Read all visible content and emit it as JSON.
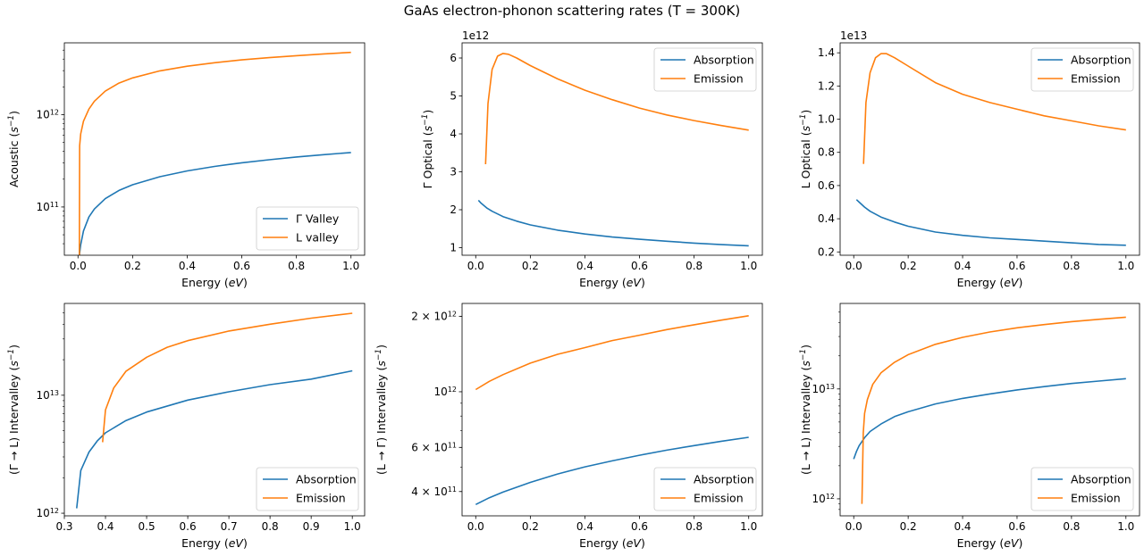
{
  "figure": {
    "title": "GaAs electron-phonon scattering rates (T = 300K)"
  },
  "colors": {
    "blue": "#1f77b4",
    "orange": "#ff7f0e"
  },
  "chart_data": [
    {
      "type": "line",
      "id": "acoustic",
      "xlabel": "Energy (eV)",
      "ylabel": "Acoustic (s^-1)",
      "yscale": "log",
      "xlim": [
        -0.05,
        1.05
      ],
      "ylim": [
        30000000000.0,
        6000000000000.0
      ],
      "xticks": [
        0,
        0.2,
        0.4,
        0.6,
        0.8,
        1.0
      ],
      "xtick_labels": [
        "0.0",
        "0.2",
        "0.4",
        "0.6",
        "0.8",
        "1.0"
      ],
      "yticks": [
        100000000000.0,
        1000000000000.0
      ],
      "ytick_labels": [
        [
          "10",
          "11"
        ],
        [
          "10",
          "12"
        ]
      ],
      "legend": "lower-right",
      "series": [
        {
          "name": "Γ Valley",
          "color": "#1f77b4",
          "x": [
            0.005,
            0.01,
            0.02,
            0.04,
            0.06,
            0.1,
            0.15,
            0.2,
            0.3,
            0.4,
            0.5,
            0.6,
            0.7,
            0.8,
            0.9,
            1.0
          ],
          "y": [
            30000000000.0,
            39000000000.0,
            55000000000.0,
            78000000000.0,
            95000000000.0,
            123000000000.0,
            151000000000.0,
            174000000000.0,
            213000000000.0,
            246000000000.0,
            275000000000.0,
            301000000000.0,
            325000000000.0,
            348000000000.0,
            369000000000.0,
            389000000000.0
          ]
        },
        {
          "name": "L valley",
          "color": "#ff7f0e",
          "x": [
            0.005,
            0.006,
            0.01,
            0.02,
            0.04,
            0.06,
            0.1,
            0.15,
            0.2,
            0.3,
            0.4,
            0.5,
            0.6,
            0.7,
            0.8,
            0.9,
            1.0
          ],
          "y": [
            30000000000.0,
            460000000000.0,
            620000000000.0,
            850000000000.0,
            1150000000000.0,
            1400000000000.0,
            1800000000000.0,
            2200000000000.0,
            2500000000000.0,
            2980000000000.0,
            3350000000000.0,
            3650000000000.0,
            3920000000000.0,
            4150000000000.0,
            4350000000000.0,
            4550000000000.0,
            4730000000000.0
          ]
        }
      ]
    },
    {
      "type": "line",
      "id": "gamma-optical",
      "xlabel": "Energy (eV)",
      "ylabel": "Γ Optical (s^-1)",
      "yscale": "linear",
      "offset_text": "1e12",
      "xlim": [
        -0.05,
        1.05
      ],
      "ylim": [
        0.8,
        6.4
      ],
      "xticks": [
        0,
        0.2,
        0.4,
        0.6,
        0.8,
        1.0
      ],
      "xtick_labels": [
        "0.0",
        "0.2",
        "0.4",
        "0.6",
        "0.8",
        "1.0"
      ],
      "yticks": [
        1,
        2,
        3,
        4,
        5,
        6
      ],
      "ytick_labels": [
        "1",
        "2",
        "3",
        "4",
        "5",
        "6"
      ],
      "legend": "upper-right",
      "series": [
        {
          "name": "Absorption",
          "color": "#1f77b4",
          "x": [
            0.01,
            0.02,
            0.04,
            0.06,
            0.1,
            0.15,
            0.2,
            0.3,
            0.4,
            0.5,
            0.6,
            0.7,
            0.8,
            0.9,
            1.0
          ],
          "y": [
            2.25,
            2.17,
            2.05,
            1.96,
            1.82,
            1.7,
            1.6,
            1.46,
            1.36,
            1.28,
            1.22,
            1.17,
            1.12,
            1.08,
            1.05
          ]
        },
        {
          "name": "Emission",
          "color": "#ff7f0e",
          "x": [
            0.036,
            0.045,
            0.06,
            0.08,
            0.1,
            0.12,
            0.15,
            0.2,
            0.3,
            0.4,
            0.5,
            0.6,
            0.7,
            0.8,
            0.9,
            1.0
          ],
          "y": [
            3.2,
            4.8,
            5.7,
            6.05,
            6.12,
            6.1,
            6.0,
            5.8,
            5.45,
            5.15,
            4.9,
            4.68,
            4.5,
            4.35,
            4.22,
            4.1
          ]
        }
      ]
    },
    {
      "type": "line",
      "id": "l-optical",
      "xlabel": "Energy (eV)",
      "ylabel": "L Optical (s^-1)",
      "yscale": "linear",
      "offset_text": "1e13",
      "xlim": [
        -0.05,
        1.05
      ],
      "ylim": [
        0.18,
        1.46
      ],
      "xticks": [
        0,
        0.2,
        0.4,
        0.6,
        0.8,
        1.0
      ],
      "xtick_labels": [
        "0.0",
        "0.2",
        "0.4",
        "0.6",
        "0.8",
        "1.0"
      ],
      "yticks": [
        0.2,
        0.4,
        0.6,
        0.8,
        1.0,
        1.2,
        1.4
      ],
      "ytick_labels": [
        "0.2",
        "0.4",
        "0.6",
        "0.8",
        "1.0",
        "1.2",
        "1.4"
      ],
      "legend": "upper-right",
      "series": [
        {
          "name": "Absorption",
          "color": "#1f77b4",
          "x": [
            0.01,
            0.02,
            0.04,
            0.06,
            0.1,
            0.15,
            0.2,
            0.3,
            0.4,
            0.5,
            0.6,
            0.7,
            0.8,
            0.9,
            1.0
          ],
          "y": [
            0.515,
            0.5,
            0.47,
            0.445,
            0.41,
            0.38,
            0.355,
            0.32,
            0.3,
            0.285,
            0.275,
            0.265,
            0.255,
            0.245,
            0.24
          ]
        },
        {
          "name": "Emission",
          "color": "#ff7f0e",
          "x": [
            0.036,
            0.045,
            0.06,
            0.08,
            0.1,
            0.12,
            0.15,
            0.2,
            0.3,
            0.4,
            0.5,
            0.6,
            0.7,
            0.8,
            0.9,
            1.0
          ],
          "y": [
            0.73,
            1.1,
            1.28,
            1.37,
            1.395,
            1.395,
            1.37,
            1.32,
            1.22,
            1.15,
            1.1,
            1.06,
            1.02,
            0.99,
            0.96,
            0.935
          ]
        }
      ]
    },
    {
      "type": "line",
      "id": "gamma-to-l",
      "xlabel": "Energy (eV)",
      "ylabel": "(Γ → L) Intervalley (s^-1)",
      "yscale": "log",
      "xlim": [
        0.3,
        1.03
      ],
      "ylim": [
        950000000000.0,
        60000000000000.0
      ],
      "xticks": [
        0.3,
        0.4,
        0.5,
        0.6,
        0.7,
        0.8,
        0.9,
        1.0
      ],
      "xtick_labels": [
        "0.3",
        "0.4",
        "0.5",
        "0.6",
        "0.7",
        "0.8",
        "0.9",
        "1.0"
      ],
      "yticks": [
        1000000000000.0,
        10000000000000.0
      ],
      "ytick_labels": [
        [
          "10",
          "12"
        ],
        [
          "10",
          "13"
        ]
      ],
      "legend": "lower-right",
      "series": [
        {
          "name": "Absorption",
          "color": "#1f77b4",
          "x": [
            0.33,
            0.34,
            0.36,
            0.38,
            0.4,
            0.45,
            0.5,
            0.6,
            0.7,
            0.8,
            0.9,
            1.0
          ],
          "y": [
            1100000000000.0,
            2300000000000.0,
            3300000000000.0,
            4100000000000.0,
            4800000000000.0,
            6100000000000.0,
            7200000000000.0,
            9100000000000.0,
            10700000000000.0,
            12300000000000.0,
            13700000000000.0,
            16100000000000.0
          ]
        },
        {
          "name": "Emission",
          "color": "#ff7f0e",
          "x": [
            0.393,
            0.4,
            0.42,
            0.45,
            0.5,
            0.55,
            0.6,
            0.7,
            0.8,
            0.9,
            1.0
          ],
          "y": [
            4000000000000.0,
            7500000000000.0,
            11500000000000.0,
            16000000000000.0,
            21000000000000.0,
            25500000000000.0,
            29000000000000.0,
            35000000000000.0,
            40000000000000.0,
            45000000000000.0,
            49500000000000.0
          ]
        }
      ]
    },
    {
      "type": "line",
      "id": "l-to-gamma",
      "xlabel": "Energy (eV)",
      "ylabel": "(L → Γ) Intervalley (s^-1)",
      "yscale": "log",
      "xlim": [
        -0.05,
        1.05
      ],
      "ylim": [
        320000000000.0,
        2250000000000.0
      ],
      "xticks": [
        0,
        0.2,
        0.4,
        0.6,
        0.8,
        1.0
      ],
      "xtick_labels": [
        "0.0",
        "0.2",
        "0.4",
        "0.6",
        "0.8",
        "1.0"
      ],
      "yticks": [
        400000000000.0,
        600000000000.0,
        1000000000000.0,
        2000000000000.0
      ],
      "ytick_labels": [
        [
          "4 × 10",
          "11"
        ],
        [
          "6 × 10",
          "11"
        ],
        [
          "10",
          "12"
        ],
        [
          "2 × 10",
          "12"
        ]
      ],
      "legend": "lower-right",
      "series": [
        {
          "name": "Absorption",
          "color": "#1f77b4",
          "x": [
            0,
            0.05,
            0.1,
            0.2,
            0.3,
            0.4,
            0.5,
            0.6,
            0.7,
            0.8,
            0.9,
            1.0
          ],
          "y": [
            355000000000.0,
            378000000000.0,
            398000000000.0,
            435000000000.0,
            470000000000.0,
            502000000000.0,
            530000000000.0,
            558000000000.0,
            585000000000.0,
            610000000000.0,
            635000000000.0,
            658000000000.0
          ]
        },
        {
          "name": "Emission",
          "color": "#ff7f0e",
          "x": [
            0,
            0.05,
            0.1,
            0.2,
            0.3,
            0.4,
            0.5,
            0.6,
            0.7,
            0.8,
            0.9,
            1.0
          ],
          "y": [
            1020000000000.0,
            1100000000000.0,
            1170000000000.0,
            1300000000000.0,
            1410000000000.0,
            1500000000000.0,
            1600000000000.0,
            1680000000000.0,
            1770000000000.0,
            1850000000000.0,
            1930000000000.0,
            2010000000000.0
          ]
        }
      ]
    },
    {
      "type": "line",
      "id": "l-to-l",
      "xlabel": "Energy (eV)",
      "ylabel": "(L → L) Intervalley (s^-1)",
      "yscale": "log",
      "xlim": [
        -0.05,
        1.05
      ],
      "ylim": [
        700000000000.0,
        60000000000000.0
      ],
      "xticks": [
        0,
        0.2,
        0.4,
        0.6,
        0.8,
        1.0
      ],
      "xtick_labels": [
        "0.0",
        "0.2",
        "0.4",
        "0.6",
        "0.8",
        "1.0"
      ],
      "yticks": [
        1000000000000.0,
        10000000000000.0
      ],
      "ytick_labels": [
        [
          "10",
          "12"
        ],
        [
          "10",
          "13"
        ]
      ],
      "legend": "lower-right",
      "series": [
        {
          "name": "Absorption",
          "color": "#1f77b4",
          "x": [
            0,
            0.01,
            0.02,
            0.04,
            0.06,
            0.1,
            0.15,
            0.2,
            0.3,
            0.4,
            0.5,
            0.6,
            0.7,
            0.8,
            0.9,
            1.0
          ],
          "y": [
            2300000000000.0,
            2700000000000.0,
            3050000000000.0,
            3600000000000.0,
            4100000000000.0,
            4800000000000.0,
            5600000000000.0,
            6200000000000.0,
            7300000000000.0,
            8200000000000.0,
            9000000000000.0,
            9800000000000.0,
            10500000000000.0,
            11200000000000.0,
            11800000000000.0,
            12400000000000.0
          ]
        },
        {
          "name": "Emission",
          "color": "#ff7f0e",
          "x": [
            0.03,
            0.035,
            0.04,
            0.05,
            0.07,
            0.1,
            0.15,
            0.2,
            0.3,
            0.4,
            0.5,
            0.6,
            0.7,
            0.8,
            0.9,
            1.0
          ],
          "y": [
            900000000000.0,
            4000000000000.0,
            6000000000000.0,
            8000000000000.0,
            11000000000000.0,
            14000000000000.0,
            17500000000000.0,
            20500000000000.0,
            25500000000000.0,
            29500000000000.0,
            33000000000000.0,
            36000000000000.0,
            38500000000000.0,
            41000000000000.0,
            43000000000000.0,
            45000000000000.0
          ]
        }
      ]
    }
  ]
}
